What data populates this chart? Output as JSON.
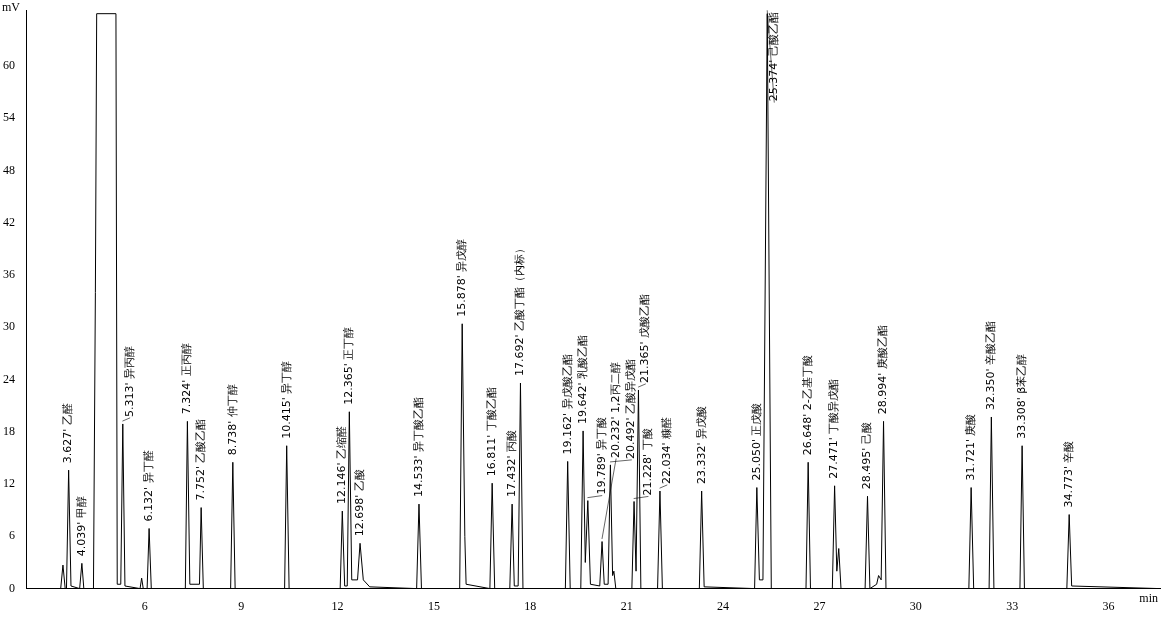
{
  "chart_data": {
    "type": "line",
    "xlabel": "min",
    "ylabel": "mV",
    "xlim": [
      2.3,
      37.6
    ],
    "ylim": [
      0,
      66.4
    ],
    "xticks": [
      6,
      9,
      12,
      15,
      18,
      21,
      24,
      27,
      30,
      33,
      36
    ],
    "yticks": [
      0,
      6,
      12,
      18,
      24,
      30,
      36,
      42,
      48,
      54,
      60
    ],
    "grid": false,
    "legend": false,
    "marker": "none",
    "line_style": "solid",
    "series": [
      {
        "color": "#000000",
        "x": [
          2.3,
          3.38,
          3.45,
          3.52,
          3.56,
          3.627,
          3.7,
          3.97,
          4.039,
          4.1,
          4.4,
          4.46,
          4.5,
          5.1,
          5.14,
          5.25,
          5.313,
          5.38,
          5.85,
          5.9,
          5.95,
          6.07,
          6.132,
          6.2,
          7.26,
          7.324,
          7.4,
          7.7,
          7.752,
          7.82,
          8.67,
          8.738,
          8.81,
          10.35,
          10.415,
          10.49,
          12.08,
          12.146,
          12.22,
          12.3,
          12.365,
          12.44,
          12.62,
          12.698,
          12.8,
          13.0,
          14.46,
          14.533,
          14.61,
          15.8,
          15.878,
          15.96,
          16.0,
          16.74,
          16.811,
          16.89,
          17.36,
          17.432,
          17.5,
          17.62,
          17.692,
          17.77,
          19.09,
          19.162,
          19.24,
          19.57,
          19.642,
          19.71,
          19.789,
          19.87,
          20.16,
          20.232,
          20.3,
          20.42,
          20.492,
          20.56,
          20.6,
          20.66,
          21.16,
          21.228,
          21.29,
          21.365,
          21.44,
          21.96,
          22.034,
          22.11,
          23.26,
          23.332,
          23.41,
          24.98,
          25.05,
          25.13,
          25.24,
          25.374,
          25.5,
          26.58,
          26.648,
          26.72,
          27.4,
          27.471,
          27.54,
          27.6,
          27.67,
          28.42,
          28.495,
          28.57,
          28.78,
          28.84,
          28.92,
          28.994,
          29.07,
          31.65,
          31.721,
          31.8,
          32.28,
          32.35,
          32.43,
          33.24,
          33.308,
          33.38,
          34.7,
          34.773,
          34.85,
          37.6
        ],
        "values": [
          0,
          0,
          2.7,
          0,
          0,
          13.6,
          0.3,
          0,
          2.9,
          0,
          0,
          34,
          66,
          66,
          0.5,
          0.5,
          18.9,
          0.3,
          0,
          1.2,
          0,
          0,
          6.9,
          0,
          0,
          19.2,
          0.5,
          0.5,
          9.3,
          0,
          0,
          14.5,
          0,
          0,
          16.4,
          0,
          0,
          8.9,
          0.3,
          0.3,
          20.3,
          1,
          1,
          5.2,
          1,
          0.2,
          0,
          9.7,
          0,
          0,
          30.4,
          6,
          0.5,
          0,
          12.1,
          0,
          0,
          9.7,
          0.3,
          0.3,
          23.6,
          0,
          0,
          14.6,
          0,
          0,
          18.1,
          3,
          10.1,
          0.5,
          0.3,
          5.4,
          0.5,
          0.5,
          14.2,
          1.5,
          2,
          0,
          0,
          10.0,
          2,
          22.8,
          0,
          0,
          11.2,
          0,
          0,
          11.2,
          0.2,
          0,
          11.6,
          1,
          1,
          66,
          0,
          0,
          14.5,
          0,
          0,
          11.8,
          2,
          4.6,
          0,
          0,
          10.6,
          0,
          0.5,
          1.5,
          1,
          19.2,
          0,
          0,
          11.6,
          0,
          0,
          19.7,
          0,
          0,
          16.4,
          0,
          0,
          8.5,
          0.3,
          0
        ]
      }
    ],
    "annotations": [
      {
        "text": "3.627' 乙醛",
        "x": 3.627,
        "y": 13.6
      },
      {
        "text": "4.039' 甲醇",
        "x": 4.039,
        "y": 2.9
      },
      {
        "text": "5.313' 异丙醇",
        "x": 5.313,
        "y": 18.9
      },
      {
        "text": "6.132' 异丁醛",
        "x": 6.132,
        "y": 6.9
      },
      {
        "text": "7.324' 正丙醇",
        "x": 7.324,
        "y": 19.2
      },
      {
        "text": "7.752' 乙酸乙酯",
        "x": 7.752,
        "y": 9.3
      },
      {
        "text": "8.738' 仲丁醇",
        "x": 8.738,
        "y": 14.5
      },
      {
        "text": "10.415' 异丁醇",
        "x": 10.415,
        "y": 16.4
      },
      {
        "text": "12.146' 乙缩醛",
        "x": 12.146,
        "y": 8.9
      },
      {
        "text": "12.365' 正丁醇",
        "x": 12.365,
        "y": 20.3
      },
      {
        "text": "12.698' 乙酸",
        "x": 12.698,
        "y": 5.2
      },
      {
        "text": "14.533' 异丁酸乙酯",
        "x": 14.533,
        "y": 9.7
      },
      {
        "text": "15.878' 异戊醇",
        "x": 15.878,
        "y": 30.4
      },
      {
        "text": "16.811' 丁酸乙酯",
        "x": 16.811,
        "y": 12.1
      },
      {
        "text": "17.432' 丙酸",
        "x": 17.432,
        "y": 9.7
      },
      {
        "text": "17.692' 乙酸丁酯（内标）",
        "x": 17.692,
        "y": 23.6
      },
      {
        "text": "19.162' 异戊酸乙酯",
        "x": 19.162,
        "y": 14.6
      },
      {
        "text": "19.642' 乳酸乙酯",
        "x": 19.642,
        "y": 18.1
      },
      {
        "text": "19.789' 异丁酸",
        "x": 19.789,
        "y": 10.1
      },
      {
        "text": "20.232' 1,2丙二醇",
        "x": 20.232,
        "y": 5.4
      },
      {
        "text": "20.492' 乙酸异戊酯",
        "x": 20.492,
        "y": 14.2
      },
      {
        "text": "21.228' 丁酸",
        "x": 21.228,
        "y": 10.0
      },
      {
        "text": "21.365' 戊酸乙酯",
        "x": 21.365,
        "y": 22.8
      },
      {
        "text": "22.034' 糠醛",
        "x": 22.034,
        "y": 11.2
      },
      {
        "text": "23.332' 异戊酸",
        "x": 23.332,
        "y": 11.2
      },
      {
        "text": "25.050' 正戊酸",
        "x": 25.05,
        "y": 11.6
      },
      {
        "text": "25.374' 己酸乙酯",
        "x": 25.374,
        "y": 66
      },
      {
        "text": "26.648' 2-乙基丁酸",
        "x": 26.648,
        "y": 14.5
      },
      {
        "text": "27.471' 丁酸异戊酯",
        "x": 27.471,
        "y": 11.8
      },
      {
        "text": "28.495' 己酸",
        "x": 28.495,
        "y": 10.6
      },
      {
        "text": "28.994' 庚酸乙酯",
        "x": 28.994,
        "y": 19.2
      },
      {
        "text": "31.721' 庚酸",
        "x": 31.721,
        "y": 11.6
      },
      {
        "text": "32.350' 辛酸乙酯",
        "x": 32.35,
        "y": 19.7
      },
      {
        "text": "33.308' β苯乙醇",
        "x": 33.308,
        "y": 16.4
      },
      {
        "text": "34.773' 辛酸",
        "x": 34.773,
        "y": 8.5
      }
    ]
  }
}
